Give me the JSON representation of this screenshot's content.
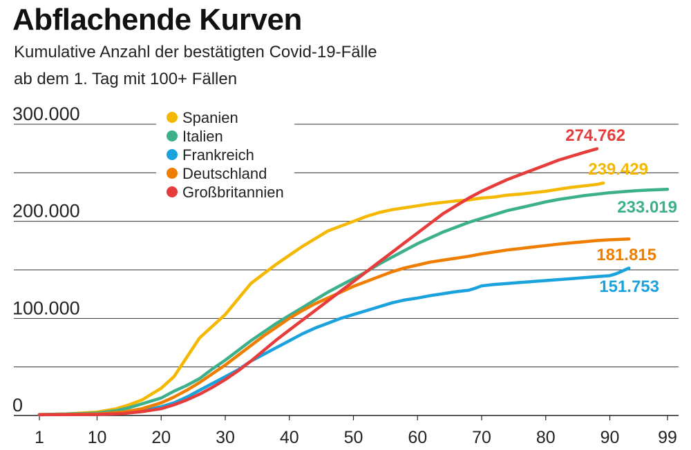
{
  "chart_data": {
    "type": "line",
    "title": "Abflachende Kurven",
    "subtitle_lines": [
      "Kumulative Anzahl der bestätigten Covid-19-Fälle",
      "ab dem 1. Tag mit 100+ Fällen"
    ],
    "xlabel": "",
    "ylabel": "",
    "xlim": [
      1,
      99
    ],
    "ylim": [
      0,
      300000
    ],
    "x_ticks": [
      1,
      10,
      20,
      30,
      40,
      50,
      60,
      70,
      80,
      90,
      99
    ],
    "y_ticks": [
      0,
      50000,
      100000,
      150000,
      200000,
      250000,
      300000
    ],
    "y_tick_labels": [
      {
        "value": 0,
        "label": "0"
      },
      {
        "value": 100000,
        "label": "100.000"
      },
      {
        "value": 200000,
        "label": "200.000"
      },
      {
        "value": 300000,
        "label": "300.000"
      }
    ],
    "grid": true,
    "legend_position": "top-left",
    "series": [
      {
        "name": "Spanien",
        "color": "#f5b800",
        "end_label": "239.429",
        "points": [
          [
            1,
            1000
          ],
          [
            5,
            1500
          ],
          [
            10,
            3500
          ],
          [
            13,
            7000
          ],
          [
            15,
            11000
          ],
          [
            17,
            16000
          ],
          [
            20,
            28000
          ],
          [
            22,
            40000
          ],
          [
            24,
            60000
          ],
          [
            26,
            80000
          ],
          [
            28,
            92000
          ],
          [
            30,
            104000
          ],
          [
            32,
            120000
          ],
          [
            34,
            136000
          ],
          [
            36,
            146000
          ],
          [
            38,
            156000
          ],
          [
            40,
            165000
          ],
          [
            42,
            174000
          ],
          [
            44,
            182000
          ],
          [
            46,
            190000
          ],
          [
            48,
            195000
          ],
          [
            50,
            200000
          ],
          [
            52,
            205000
          ],
          [
            54,
            209000
          ],
          [
            56,
            212000
          ],
          [
            58,
            214000
          ],
          [
            60,
            216000
          ],
          [
            62,
            218000
          ],
          [
            64,
            219500
          ],
          [
            66,
            221000
          ],
          [
            68,
            222000
          ],
          [
            70,
            224000
          ],
          [
            72,
            225000
          ],
          [
            74,
            227000
          ],
          [
            76,
            228000
          ],
          [
            78,
            229500
          ],
          [
            80,
            231000
          ],
          [
            82,
            233000
          ],
          [
            84,
            235000
          ],
          [
            86,
            236500
          ],
          [
            88,
            238000
          ],
          [
            89,
            239429
          ]
        ]
      },
      {
        "name": "Italien",
        "color": "#3cb08a",
        "end_label": "233.019",
        "points": [
          [
            1,
            1000
          ],
          [
            5,
            1500
          ],
          [
            10,
            2500
          ],
          [
            13,
            5000
          ],
          [
            15,
            8000
          ],
          [
            17,
            12000
          ],
          [
            20,
            18000
          ],
          [
            22,
            25000
          ],
          [
            24,
            31000
          ],
          [
            26,
            38000
          ],
          [
            28,
            48000
          ],
          [
            30,
            57000
          ],
          [
            32,
            67000
          ],
          [
            34,
            77000
          ],
          [
            36,
            86000
          ],
          [
            38,
            95000
          ],
          [
            40,
            103000
          ],
          [
            42,
            111000
          ],
          [
            44,
            119000
          ],
          [
            46,
            127000
          ],
          [
            48,
            134000
          ],
          [
            50,
            141000
          ],
          [
            52,
            148000
          ],
          [
            54,
            156000
          ],
          [
            56,
            163000
          ],
          [
            58,
            170000
          ],
          [
            60,
            177000
          ],
          [
            62,
            183000
          ],
          [
            64,
            189000
          ],
          [
            66,
            194000
          ],
          [
            68,
            199000
          ],
          [
            70,
            203000
          ],
          [
            72,
            207000
          ],
          [
            74,
            211000
          ],
          [
            76,
            214000
          ],
          [
            78,
            217000
          ],
          [
            80,
            220000
          ],
          [
            82,
            222500
          ],
          [
            84,
            224500
          ],
          [
            86,
            226500
          ],
          [
            88,
            228000
          ],
          [
            90,
            229500
          ],
          [
            92,
            230500
          ],
          [
            94,
            231500
          ],
          [
            96,
            232200
          ],
          [
            99,
            233019
          ]
        ]
      },
      {
        "name": "Frankreich",
        "color": "#1aa2dc",
        "end_label": "151.753",
        "points": [
          [
            1,
            800
          ],
          [
            10,
            1500
          ],
          [
            14,
            3000
          ],
          [
            17,
            5000
          ],
          [
            20,
            9000
          ],
          [
            22,
            13000
          ],
          [
            24,
            19000
          ],
          [
            26,
            26000
          ],
          [
            28,
            33000
          ],
          [
            30,
            40000
          ],
          [
            32,
            47000
          ],
          [
            34,
            56000
          ],
          [
            36,
            63000
          ],
          [
            38,
            70000
          ],
          [
            40,
            77000
          ],
          [
            42,
            84000
          ],
          [
            44,
            90000
          ],
          [
            46,
            95000
          ],
          [
            48,
            100000
          ],
          [
            50,
            104000
          ],
          [
            52,
            108000
          ],
          [
            54,
            112000
          ],
          [
            56,
            116000
          ],
          [
            58,
            119000
          ],
          [
            60,
            121000
          ],
          [
            62,
            123500
          ],
          [
            64,
            125500
          ],
          [
            66,
            127500
          ],
          [
            68,
            129000
          ],
          [
            69,
            131000
          ],
          [
            70,
            133500
          ],
          [
            72,
            135000
          ],
          [
            74,
            136000
          ],
          [
            76,
            137000
          ],
          [
            78,
            138000
          ],
          [
            80,
            139000
          ],
          [
            82,
            140000
          ],
          [
            84,
            141000
          ],
          [
            86,
            142000
          ],
          [
            88,
            143000
          ],
          [
            90,
            144000
          ],
          [
            91,
            146000
          ],
          [
            92,
            149000
          ],
          [
            93,
            151753
          ]
        ]
      },
      {
        "name": "Deutschland",
        "color": "#ee7d00",
        "end_label": "181.815",
        "points": [
          [
            1,
            800
          ],
          [
            10,
            1500
          ],
          [
            14,
            3500
          ],
          [
            17,
            7000
          ],
          [
            20,
            13000
          ],
          [
            22,
            19000
          ],
          [
            24,
            26000
          ],
          [
            26,
            34000
          ],
          [
            28,
            43000
          ],
          [
            30,
            52000
          ],
          [
            32,
            62000
          ],
          [
            34,
            72000
          ],
          [
            36,
            82000
          ],
          [
            38,
            91000
          ],
          [
            40,
            100000
          ],
          [
            42,
            108000
          ],
          [
            44,
            115000
          ],
          [
            46,
            121000
          ],
          [
            48,
            127000
          ],
          [
            50,
            133000
          ],
          [
            52,
            138000
          ],
          [
            54,
            143000
          ],
          [
            56,
            148000
          ],
          [
            58,
            152000
          ],
          [
            60,
            155000
          ],
          [
            62,
            158000
          ],
          [
            64,
            160000
          ],
          [
            66,
            162000
          ],
          [
            68,
            164000
          ],
          [
            70,
            166500
          ],
          [
            72,
            168500
          ],
          [
            74,
            170500
          ],
          [
            76,
            172000
          ],
          [
            78,
            173500
          ],
          [
            80,
            175000
          ],
          [
            82,
            176500
          ],
          [
            84,
            177800
          ],
          [
            86,
            179000
          ],
          [
            88,
            180200
          ],
          [
            90,
            181000
          ],
          [
            93,
            181815
          ]
        ]
      },
      {
        "name": "Großbritannien",
        "color": "#e63c3c",
        "end_label": "274.762",
        "points": [
          [
            1,
            800
          ],
          [
            10,
            1000
          ],
          [
            14,
            2000
          ],
          [
            17,
            4000
          ],
          [
            20,
            7000
          ],
          [
            22,
            11000
          ],
          [
            24,
            16000
          ],
          [
            26,
            22000
          ],
          [
            28,
            29000
          ],
          [
            30,
            37000
          ],
          [
            32,
            46000
          ],
          [
            34,
            56000
          ],
          [
            36,
            67000
          ],
          [
            38,
            78000
          ],
          [
            40,
            88000
          ],
          [
            42,
            98000
          ],
          [
            44,
            108000
          ],
          [
            46,
            118000
          ],
          [
            48,
            128000
          ],
          [
            50,
            138000
          ],
          [
            52,
            148000
          ],
          [
            54,
            158000
          ],
          [
            56,
            168000
          ],
          [
            58,
            178000
          ],
          [
            60,
            188000
          ],
          [
            62,
            198000
          ],
          [
            64,
            208000
          ],
          [
            66,
            216000
          ],
          [
            68,
            224000
          ],
          [
            70,
            231000
          ],
          [
            72,
            237000
          ],
          [
            74,
            243000
          ],
          [
            76,
            248000
          ],
          [
            78,
            253000
          ],
          [
            80,
            258000
          ],
          [
            82,
            263000
          ],
          [
            84,
            267000
          ],
          [
            86,
            271000
          ],
          [
            88,
            274762
          ]
        ]
      }
    ]
  }
}
